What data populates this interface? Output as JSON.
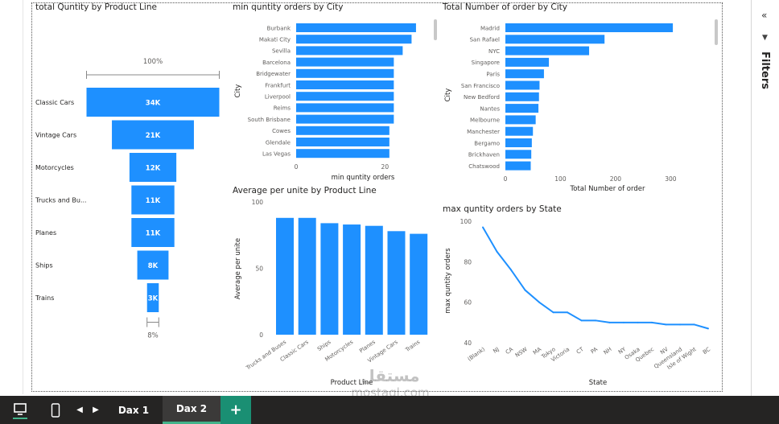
{
  "colors": {
    "bar": "#1e90ff",
    "line": "#1e90ff",
    "axis_text": "#605e5c",
    "title": "#252423"
  },
  "filters_pane": {
    "label": "Filters",
    "collapse_icon": "chevron-double-left-icon",
    "funnel_icon": "funnel-icon"
  },
  "tabs": [
    {
      "label": "Dax 1"
    },
    {
      "label": "Dax 2"
    }
  ],
  "add_page_label": "+",
  "view_icons": [
    "desktop-view-icon",
    "mobile-view-icon"
  ],
  "watermark": {
    "top": "مستقل",
    "bottom": "mostaql.com"
  },
  "chart_data": [
    {
      "type": "funnel",
      "title": "total Quntity by Product Line",
      "categories": [
        "Classic Cars",
        "Vintage Cars",
        "Motorcycles",
        "Trucks and Bu...",
        "Planes",
        "Ships",
        "Trains"
      ],
      "values": [
        34,
        21,
        12,
        11,
        11,
        8,
        3
      ],
      "data_labels": [
        "34K",
        "21K",
        "12K",
        "11K",
        "11K",
        "8K",
        "3K"
      ],
      "top_percent_label": "100%",
      "bottom_percent_label": "8%"
    },
    {
      "type": "bar",
      "orientation": "horizontal",
      "title": "min quntity orders by City",
      "categories": [
        "Burbank",
        "Makati City",
        "Sevilla",
        "Barcelona",
        "Bridgewater",
        "Frankfurt",
        "Liverpool",
        "Reims",
        "South Brisbane",
        "Cowes",
        "Glendale",
        "Las Vegas"
      ],
      "values": [
        27,
        26,
        24,
        22,
        22,
        22,
        22,
        22,
        22,
        21,
        21,
        21
      ],
      "xlabel": "min quntity orders",
      "ylabel": "City",
      "xlim": [
        0,
        31
      ],
      "xticks": [
        0,
        20
      ]
    },
    {
      "type": "bar",
      "orientation": "horizontal",
      "title": "Total Number of order by City",
      "categories": [
        "Madrid",
        "San Rafael",
        "NYC",
        "Singapore",
        "Paris",
        "San Francisco",
        "New Bedford",
        "Nantes",
        "Melbourne",
        "Manchester",
        "Bergamo",
        "Brickhaven",
        "Chatswood"
      ],
      "values": [
        304,
        180,
        152,
        79,
        70,
        62,
        61,
        60,
        55,
        50,
        48,
        47,
        46
      ],
      "xlabel": "Total Number of order",
      "ylabel": "City",
      "xlim": [
        0,
        355
      ],
      "xticks": [
        0,
        100,
        200,
        300
      ]
    },
    {
      "type": "bar",
      "title": "Average per unite by Product Line",
      "categories": [
        "Trucks and Buses",
        "Classic Cars",
        "Ships",
        "Motorcycles",
        "Planes",
        "Vintage Cars",
        "Trains"
      ],
      "values": [
        88,
        88,
        84,
        83,
        82,
        78,
        76
      ],
      "xlabel": "Product Line",
      "ylabel": "Average per unite",
      "ylim": [
        0,
        100
      ],
      "yticks": [
        0,
        50,
        100
      ]
    },
    {
      "type": "line",
      "title": "max quntity orders by State",
      "categories": [
        "(Blank)",
        "NJ",
        "CA",
        "NSW",
        "MA",
        "Tokyo",
        "Victoria",
        "CT",
        "PA",
        "NH",
        "NY",
        "Osaka",
        "Quebec",
        "NV",
        "Queensland",
        "Isle of Wight",
        "BC"
      ],
      "values": [
        97,
        85,
        76,
        66,
        60,
        55,
        55,
        51,
        51,
        50,
        50,
        50,
        50,
        49,
        49,
        49,
        47
      ],
      "xlabel": "State",
      "ylabel": "max quntity orders",
      "ylim": [
        40,
        100
      ],
      "yticks": [
        40,
        60,
        80,
        100
      ]
    }
  ]
}
